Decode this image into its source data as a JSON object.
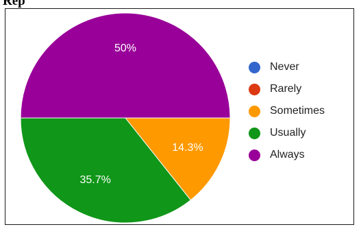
{
  "page": {
    "top_text": "Rep"
  },
  "chart_data": {
    "type": "pie",
    "title": "",
    "categories": [
      "Never",
      "Rarely",
      "Sometimes",
      "Usually",
      "Always"
    ],
    "values": [
      0,
      0,
      14.3,
      35.7,
      50
    ],
    "colors": [
      "#3366cc",
      "#dc3912",
      "#ff9900",
      "#109618",
      "#990099"
    ],
    "slice_labels": [
      "",
      "",
      "14.3%",
      "35.7%",
      "50%"
    ],
    "legend_position": "right"
  }
}
